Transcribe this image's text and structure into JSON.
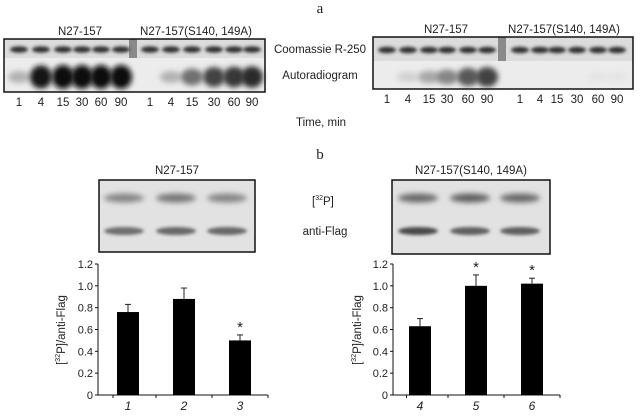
{
  "panel_a": {
    "letter": "a",
    "row_labels": {
      "coomassie": "Coomassie R-250",
      "autoradiogram": "Autoradiogram"
    },
    "x_caption": "Time, min",
    "gels": [
      {
        "groups": [
          {
            "label": "N27-157",
            "lanes": [
              "1",
              "4",
              "15",
              "30",
              "60",
              "90"
            ],
            "autoradiogram_intensity": [
              0.25,
              0.95,
              1.0,
              1.0,
              1.0,
              1.0
            ]
          },
          {
            "label": "N27-157(S140, 149A)",
            "lanes": [
              "1",
              "4",
              "15",
              "30",
              "60",
              "90"
            ],
            "autoradiogram_intensity": [
              0.0,
              0.25,
              0.55,
              0.75,
              0.8,
              0.85
            ]
          }
        ]
      },
      {
        "groups": [
          {
            "label": "N27-157",
            "lanes": [
              "1",
              "4",
              "15",
              "30",
              "60",
              "90"
            ],
            "autoradiogram_intensity": [
              0.0,
              0.12,
              0.3,
              0.45,
              0.65,
              0.75
            ]
          },
          {
            "label": "N27-157(S140, 149A)",
            "lanes": [
              "1",
              "4",
              "15",
              "30",
              "60",
              "90"
            ],
            "autoradiogram_intensity": [
              0,
              0,
              0,
              0,
              0.03,
              0.03
            ]
          }
        ]
      }
    ]
  },
  "panel_b": {
    "letter": "b",
    "blot_labels": {
      "p32_prefix": "[",
      "p32_sup": "32",
      "p32_suffix": "P]",
      "antiflag": "anti-Flag"
    }
  },
  "chart_data": [
    {
      "type": "bar",
      "title": "N27-157",
      "categories": [
        "1",
        "2",
        "3"
      ],
      "values": [
        0.76,
        0.88,
        0.5
      ],
      "error_upper": [
        0.83,
        0.98,
        0.55
      ],
      "significance": [
        "",
        "",
        "*"
      ],
      "ylabel_prefix": "[",
      "ylabel_sup": "32",
      "ylabel_suffix": "P]/anti-Flag",
      "ylim": [
        0,
        1.2
      ],
      "yticks": [
        "0",
        "0.2",
        "0.4",
        "0.6",
        "0.8",
        "1.0",
        "1.2"
      ],
      "bar_color": "#000000",
      "grid": false
    },
    {
      "type": "bar",
      "title": "N27-157(S140, 149A)",
      "categories": [
        "4",
        "5",
        "6"
      ],
      "values": [
        0.63,
        1.0,
        1.02
      ],
      "error_upper": [
        0.7,
        1.1,
        1.07
      ],
      "significance": [
        "",
        "*",
        "*"
      ],
      "ylabel_prefix": "[",
      "ylabel_sup": "32",
      "ylabel_suffix": "P]/anti-Flag",
      "ylim": [
        0,
        1.2
      ],
      "yticks": [
        "0",
        "0.2",
        "0.4",
        "0.6",
        "0.8",
        "1.0",
        "1.2"
      ],
      "bar_color": "#000000",
      "grid": false
    }
  ]
}
